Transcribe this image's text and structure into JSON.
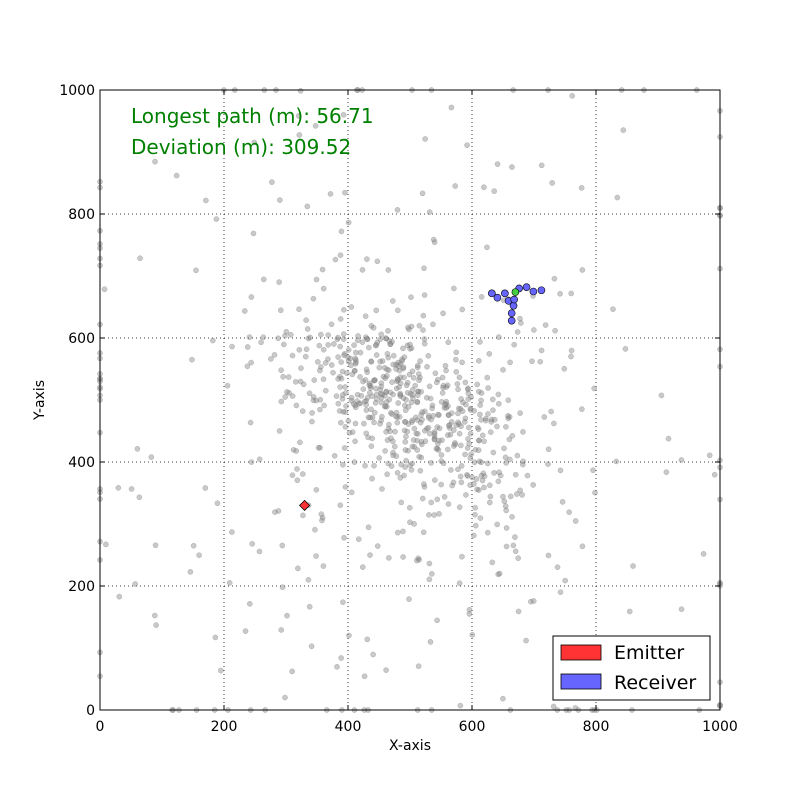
{
  "chart_data": {
    "type": "scatter",
    "xlabel": "X-axis",
    "ylabel": "Y-axis",
    "xlim": [
      0,
      1000
    ],
    "ylim": [
      0,
      1000
    ],
    "xticks": [
      0,
      200,
      400,
      600,
      800,
      1000
    ],
    "yticks": [
      0,
      200,
      400,
      600,
      800,
      1000
    ],
    "grid": true,
    "grid_style": "dotted",
    "legend_position": "lower-right",
    "annotations": [
      {
        "text": "Longest path (m): 56.71",
        "color": "#008000"
      },
      {
        "text": "Deviation (m): 309.52",
        "color": "#008000"
      }
    ],
    "legend": [
      {
        "label": "Emitter",
        "color": "#ff3333"
      },
      {
        "label": "Receiver",
        "color": "#6666ff"
      }
    ],
    "emitter": {
      "name": "Emitter",
      "color": "#ff3333",
      "marker": "diamond",
      "point": [
        330,
        330
      ]
    },
    "receiver": {
      "name": "Receiver",
      "color": "#6666ff",
      "marker": "circle",
      "points": [
        [
          632,
          672
        ],
        [
          641,
          665
        ],
        [
          653,
          672
        ],
        [
          659,
          660
        ],
        [
          667,
          652
        ],
        [
          664,
          640
        ],
        [
          664,
          628
        ],
        [
          676,
          680
        ],
        [
          688,
          682
        ],
        [
          699,
          675
        ],
        [
          712,
          677
        ],
        [
          668,
          662
        ]
      ],
      "center": {
        "point": [
          670,
          674
        ],
        "color": "#44cc44"
      }
    },
    "background_points": {
      "color": "#888888",
      "opacity": 0.45,
      "cluster_center": [
        500,
        450
      ],
      "count": 900
    }
  }
}
